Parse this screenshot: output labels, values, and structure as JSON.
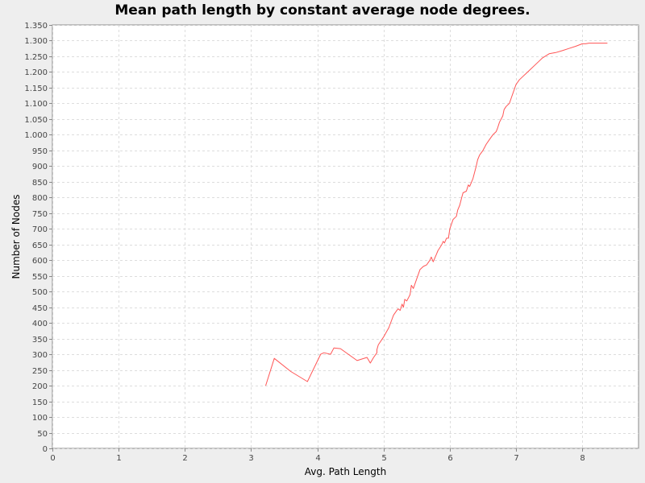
{
  "chart_data": {
    "type": "line",
    "title": "Mean path length by constant average node degrees.",
    "xlabel": "Avg. Path Length",
    "ylabel": "Number of Nodes",
    "xlim": [
      0,
      8.85
    ],
    "ylim": [
      0,
      1350
    ],
    "x_ticks": [
      0,
      1,
      2,
      3,
      4,
      5,
      6,
      7,
      8
    ],
    "x_tick_labels": [
      "0",
      "1",
      "2",
      "3",
      "4",
      "5",
      "6",
      "7",
      "8"
    ],
    "y_ticks": [
      0,
      50,
      100,
      150,
      200,
      250,
      300,
      350,
      400,
      450,
      500,
      550,
      600,
      650,
      700,
      750,
      800,
      850,
      900,
      950,
      1000,
      1050,
      1100,
      1150,
      1200,
      1250,
      1300,
      1350
    ],
    "y_tick_labels": [
      "0",
      "50",
      "100",
      "150",
      "200",
      "250",
      "300",
      "350",
      "400",
      "450",
      "500",
      "550",
      "600",
      "650",
      "700",
      "750",
      "800",
      "850",
      "900",
      "950",
      "1.000",
      "1.050",
      "1.100",
      "1.150",
      "1.200",
      "1.250",
      "1.300",
      "1.350"
    ],
    "grid": true,
    "legend": "none",
    "colors": {
      "series": "#ff5555",
      "plot_background": "#ffffff",
      "grid": "#dddddd",
      "axis": "#888888"
    },
    "series": [
      {
        "x": [
          3.22,
          3.35,
          3.6,
          3.85,
          4.05,
          4.1,
          4.2,
          4.25,
          4.35,
          4.6,
          4.75,
          4.8,
          4.85,
          4.9,
          4.9,
          4.92,
          5.0,
          5.08,
          5.15,
          5.2,
          5.22,
          5.25,
          5.28,
          5.3,
          5.32,
          5.35,
          5.4,
          5.42,
          5.45,
          5.5,
          5.55,
          5.6,
          5.65,
          5.7,
          5.72,
          5.75,
          5.8,
          5.82,
          5.85,
          5.88,
          5.9,
          5.92,
          5.95,
          5.98,
          6.0,
          6.05,
          6.1,
          6.12,
          6.15,
          6.18,
          6.2,
          6.25,
          6.28,
          6.3,
          6.35,
          6.4,
          6.42,
          6.45,
          6.5,
          6.55,
          6.6,
          6.65,
          6.7,
          6.72,
          6.75,
          6.8,
          6.82,
          6.85,
          6.9,
          6.95,
          7.0,
          7.05,
          7.1,
          7.15,
          7.2,
          7.3,
          7.35,
          7.4,
          7.5,
          7.6,
          7.7,
          7.8,
          7.9,
          8.0,
          8.05,
          8.1,
          8.2,
          8.3,
          8.38
        ],
        "y": [
          200,
          287,
          245,
          213,
          300,
          305,
          300,
          320,
          318,
          280,
          290,
          272,
          290,
          305,
          315,
          330,
          355,
          385,
          425,
          440,
          445,
          440,
          460,
          450,
          475,
          470,
          490,
          520,
          510,
          540,
          570,
          580,
          585,
          600,
          610,
          595,
          620,
          630,
          640,
          650,
          660,
          655,
          670,
          670,
          700,
          730,
          740,
          760,
          775,
          800,
          815,
          820,
          840,
          835,
          860,
          900,
          920,
          935,
          950,
          970,
          985,
          1000,
          1010,
          1020,
          1040,
          1060,
          1080,
          1090,
          1100,
          1130,
          1160,
          1175,
          1185,
          1195,
          1205,
          1225,
          1235,
          1245,
          1258,
          1262,
          1268,
          1275,
          1282,
          1290,
          1290,
          1292,
          1292,
          1292,
          1292
        ]
      }
    ]
  }
}
